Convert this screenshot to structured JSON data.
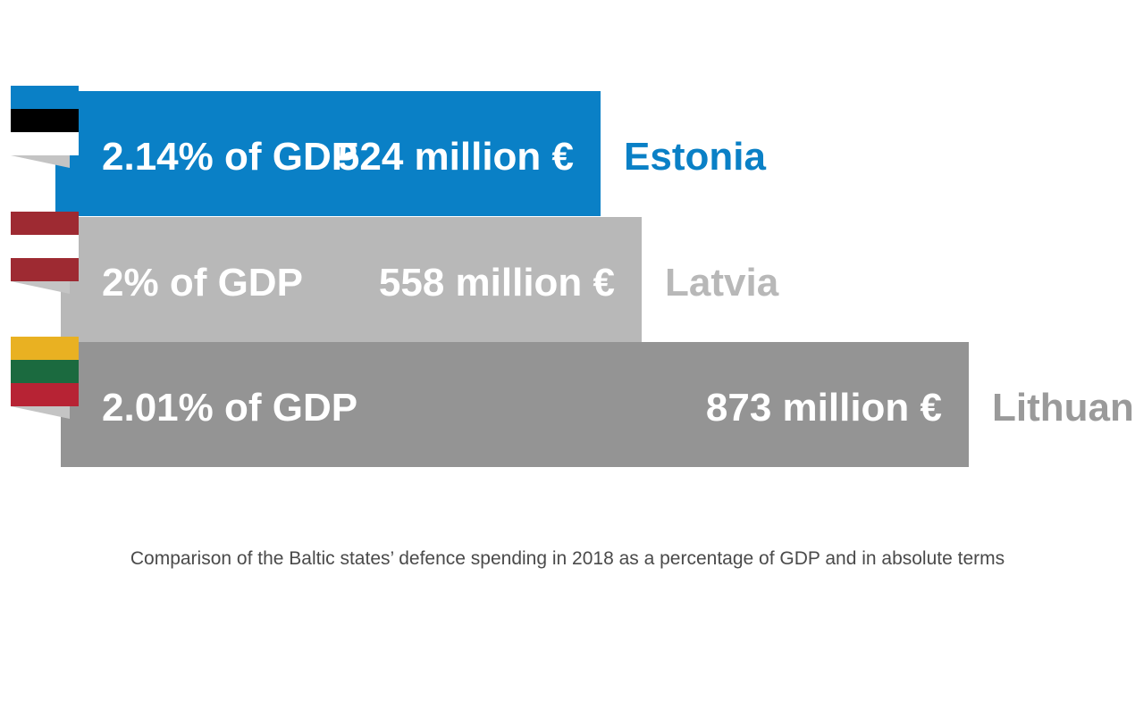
{
  "chart_data": {
    "type": "bar",
    "orientation": "horizontal",
    "categories": [
      "Estonia",
      "Latvia",
      "Lithuania"
    ],
    "series": [
      {
        "name": "",
        "values": [
          524,
          558,
          873
        ]
      }
    ],
    "unit": "million €",
    "bars": [
      {
        "country": "Estonia",
        "gdp_label": "2.14% of GDP",
        "amount_label": "524 million €",
        "value": 524,
        "bar_color": "#0a80c6",
        "country_color": "#0a80c6",
        "flag": [
          "#0a80c6",
          "#000000",
          "#ffffff"
        ]
      },
      {
        "country": "Latvia",
        "gdp_label": "2% of GDP",
        "amount_label": "558 million €",
        "value": 558,
        "bar_color": "#b8b8b8",
        "country_color": "#b8b8b8",
        "flag": [
          "#9e2a32",
          "#ffffff",
          "#9e2a32"
        ]
      },
      {
        "country": "Lithuania",
        "gdp_label": "2.01% of GDP",
        "amount_label": "873 million €",
        "value": 873,
        "bar_color": "#949494",
        "country_color": "#9a9a9a",
        "flag": [
          "#e9b122",
          "#1b6a3f",
          "#b72334"
        ]
      }
    ],
    "caption": "Comparison of the Baltic states’ defence spending in 2018 as a percentage of GDP and in absolute terms",
    "grid": false,
    "legend": "none"
  }
}
